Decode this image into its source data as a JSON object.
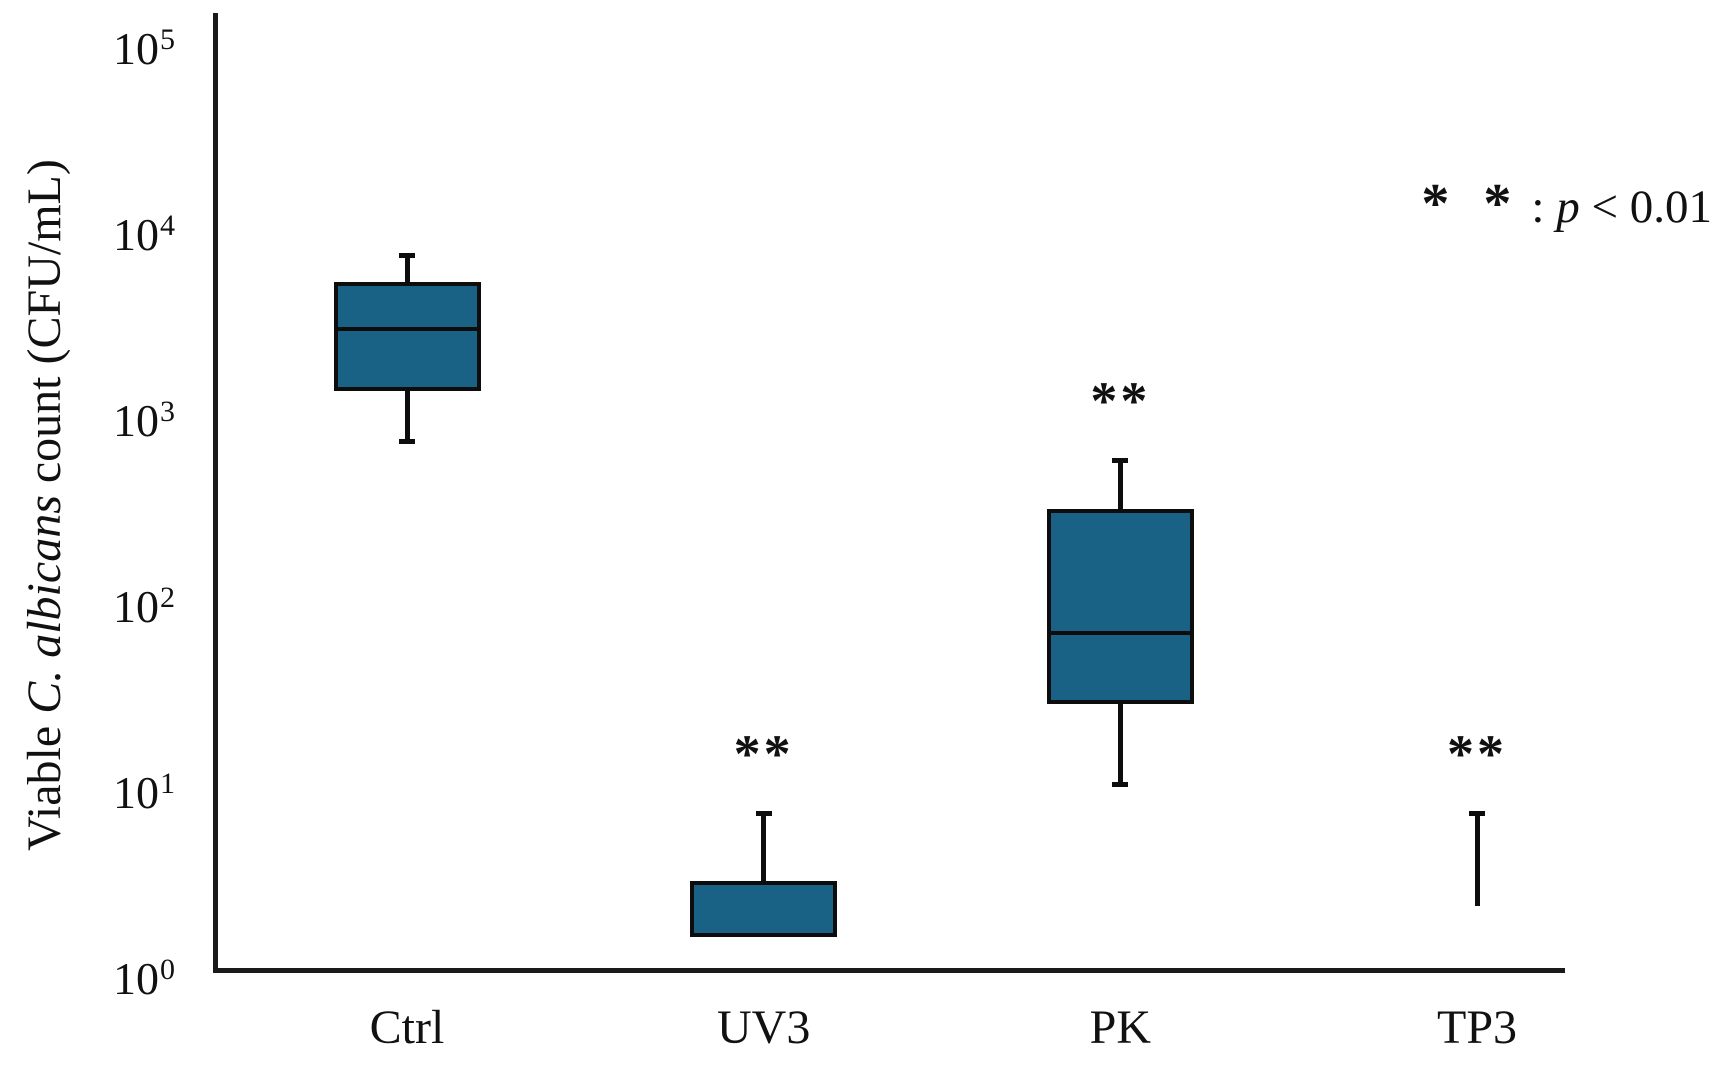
{
  "figure": {
    "background": "#ffffff",
    "box_fill": "#1A6186",
    "line_color": "#0d0d0d"
  },
  "y_axis": {
    "title_pre": "Viable ",
    "title_italic": "C. albicans",
    "title_post": " count (CFU/mL)",
    "ticks": [
      {
        "base": "10",
        "exp": "5"
      },
      {
        "base": "10",
        "exp": "4"
      },
      {
        "base": "10",
        "exp": "3"
      },
      {
        "base": "10",
        "exp": "2"
      },
      {
        "base": "10",
        "exp": "1"
      },
      {
        "base": "10",
        "exp": "0"
      }
    ]
  },
  "legend": {
    "stars": "* *",
    "sep": ": ",
    "p": "p",
    "rest": " < 0.01"
  },
  "chart_data": {
    "type": "boxplot",
    "title": "",
    "ylabel": "Viable C. albicans count (CFU/mL)",
    "xlabel": "",
    "y_scale": "log10",
    "ylim": [
      1,
      100000
    ],
    "grid": false,
    "legend_position": "top-right",
    "annotation": "** : p < 0.01",
    "categories": [
      "Ctrl",
      "UV3",
      "PK",
      "TP3"
    ],
    "groups": [
      {
        "label": "Ctrl",
        "whisker_high": 7000,
        "q3": 5000,
        "median": 2800,
        "q1": 1300,
        "whisker_low": 700,
        "significance": null
      },
      {
        "label": "UV3",
        "whisker_high": 7,
        "q3": 3,
        "median": null,
        "q1": 1.5,
        "whisker_low": null,
        "significance": "**"
      },
      {
        "label": "PK",
        "whisker_high": 550,
        "q3": 300,
        "median": 65,
        "q1": 27,
        "whisker_low": 10,
        "significance": "**"
      },
      {
        "label": "TP3",
        "whisker_high": 7,
        "q3": null,
        "median": null,
        "q1": null,
        "whisker_low": 2.2,
        "significance": "**"
      }
    ]
  }
}
